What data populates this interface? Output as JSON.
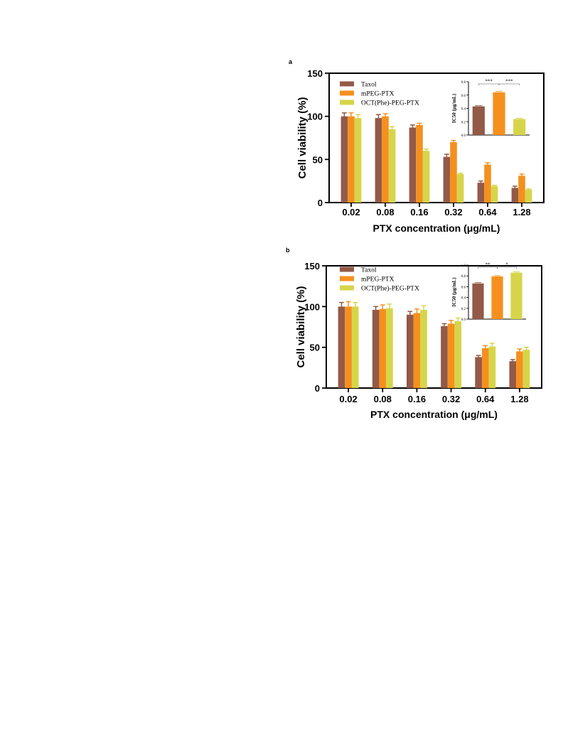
{
  "colors": {
    "taxol": "#935A48",
    "mpeg": "#F5901E",
    "oct": "#D6D54A",
    "axis": "#000000",
    "errorbar": "#000000"
  },
  "chart_data": [
    {
      "panel": "a",
      "type": "bar",
      "categories": [
        "0.02",
        "0.08",
        "0.16",
        "0.32",
        "0.64",
        "1.28"
      ],
      "ylabel": "Cell viability (%)",
      "xlabel": "PTX concentration (μg/mL)",
      "ylim": [
        0,
        150
      ],
      "yticks": [
        "0",
        "50",
        "100",
        "150"
      ],
      "legend_position": "top-left",
      "series": [
        {
          "name": "Taxol",
          "color_key": "taxol",
          "values": [
            100,
            98,
            87,
            53,
            23,
            17
          ],
          "errors": [
            4,
            4,
            3,
            3,
            2,
            2
          ]
        },
        {
          "name": "mPEG-PTX",
          "color_key": "mpeg",
          "values": [
            100,
            100,
            90,
            70,
            44,
            31
          ],
          "errors": [
            4,
            3,
            2,
            2,
            2,
            2
          ]
        },
        {
          "name": "OCT(Phe)-PEG-PTX",
          "color_key": "oct",
          "values": [
            98,
            85,
            60,
            33,
            19,
            15
          ],
          "errors": [
            4,
            3,
            2,
            1,
            1,
            1
          ]
        }
      ],
      "inset": {
        "ylabel": "IC50 (μg/mL)",
        "ylim": [
          0,
          0.8
        ],
        "yticks": [
          "0.0",
          "0.2",
          "0.4",
          "0.6",
          "0.8"
        ],
        "values": [
          0.43,
          0.64,
          0.24
        ],
        "errors": [
          0.01,
          0.015,
          0.01
        ],
        "significance": [
          {
            "from": 0,
            "to": 1,
            "label": "***"
          },
          {
            "from": 1,
            "to": 2,
            "label": "***"
          }
        ]
      }
    },
    {
      "panel": "b",
      "type": "bar",
      "categories": [
        "0.02",
        "0.08",
        "0.16",
        "0.32",
        "0.64",
        "1.28"
      ],
      "ylabel": "Cell viability (%)",
      "xlabel": "PTX concentration (μg/mL)",
      "ylim": [
        0,
        150
      ],
      "yticks": [
        "0",
        "50",
        "100",
        "150"
      ],
      "legend_position": "top-left",
      "series": [
        {
          "name": "Taxol",
          "color_key": "taxol",
          "values": [
            100,
            96,
            90,
            76,
            38,
            33
          ],
          "errors": [
            5,
            4,
            4,
            3,
            2,
            2
          ]
        },
        {
          "name": "mPEG-PTX",
          "color_key": "mpeg",
          "values": [
            100,
            97,
            92,
            79,
            49,
            45
          ],
          "errors": [
            6,
            5,
            5,
            4,
            3,
            3
          ]
        },
        {
          "name": "OCT(Phe)-PEG-PTX",
          "color_key": "oct",
          "values": [
            100,
            98,
            96,
            82,
            51,
            47
          ],
          "errors": [
            5,
            5,
            5,
            4,
            4,
            3
          ]
        }
      ],
      "inset": {
        "ylabel": "IC50 (μg/mL)",
        "ylim": [
          0,
          1.0
        ],
        "yticks": [
          "0.0",
          "0.2",
          "0.4",
          "0.6",
          "0.8",
          "1.0"
        ],
        "values": [
          0.66,
          0.79,
          0.86
        ],
        "errors": [
          0.015,
          0.015,
          0.015
        ],
        "significance": [
          {
            "from": 0,
            "to": 1,
            "label": "**"
          },
          {
            "from": 1,
            "to": 2,
            "label": "*"
          }
        ]
      }
    }
  ]
}
